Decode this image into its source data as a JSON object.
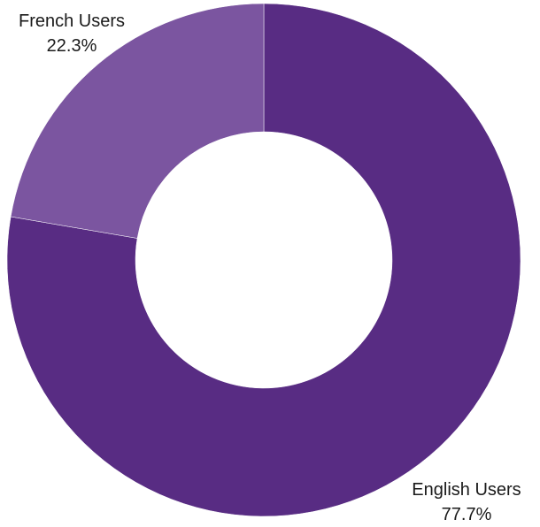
{
  "chart_data": {
    "type": "pie",
    "variant": "donut",
    "title": "",
    "categories": [
      "English Users",
      "French Users"
    ],
    "values": [
      77.7,
      22.3
    ],
    "value_labels": [
      "77.7%",
      "22.3%"
    ],
    "colors": [
      "#582C83",
      "#7B55A0"
    ],
    "legend": "none"
  }
}
